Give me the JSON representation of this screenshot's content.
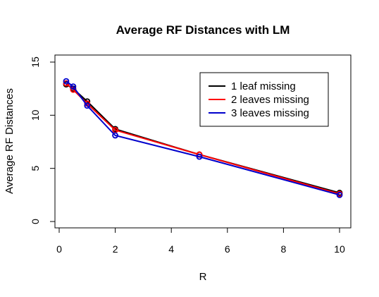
{
  "chart_data": {
    "type": "line",
    "title": "Average RF Distances with LM",
    "xlabel": "R",
    "ylabel": "Average RF Distances",
    "xlim": [
      0,
      10
    ],
    "ylim": [
      0,
      15
    ],
    "xticks": [
      0,
      2,
      4,
      6,
      8,
      10
    ],
    "yticks": [
      0,
      5,
      10,
      15
    ],
    "grid": false,
    "legend_position": "top-right",
    "x": [
      0.25,
      0.5,
      1,
      2,
      5,
      10
    ],
    "series": [
      {
        "name": "1 leaf missing",
        "color": "#000000",
        "values": [
          12.9,
          12.5,
          11.3,
          8.7,
          6.3,
          2.7
        ]
      },
      {
        "name": "2 leaves missing",
        "color": "#ff0000",
        "values": [
          13.0,
          12.4,
          11.1,
          8.6,
          6.3,
          2.6
        ]
      },
      {
        "name": "3 leaves missing",
        "color": "#0000cc",
        "values": [
          13.2,
          12.7,
          10.9,
          8.1,
          6.1,
          2.5
        ]
      }
    ]
  }
}
